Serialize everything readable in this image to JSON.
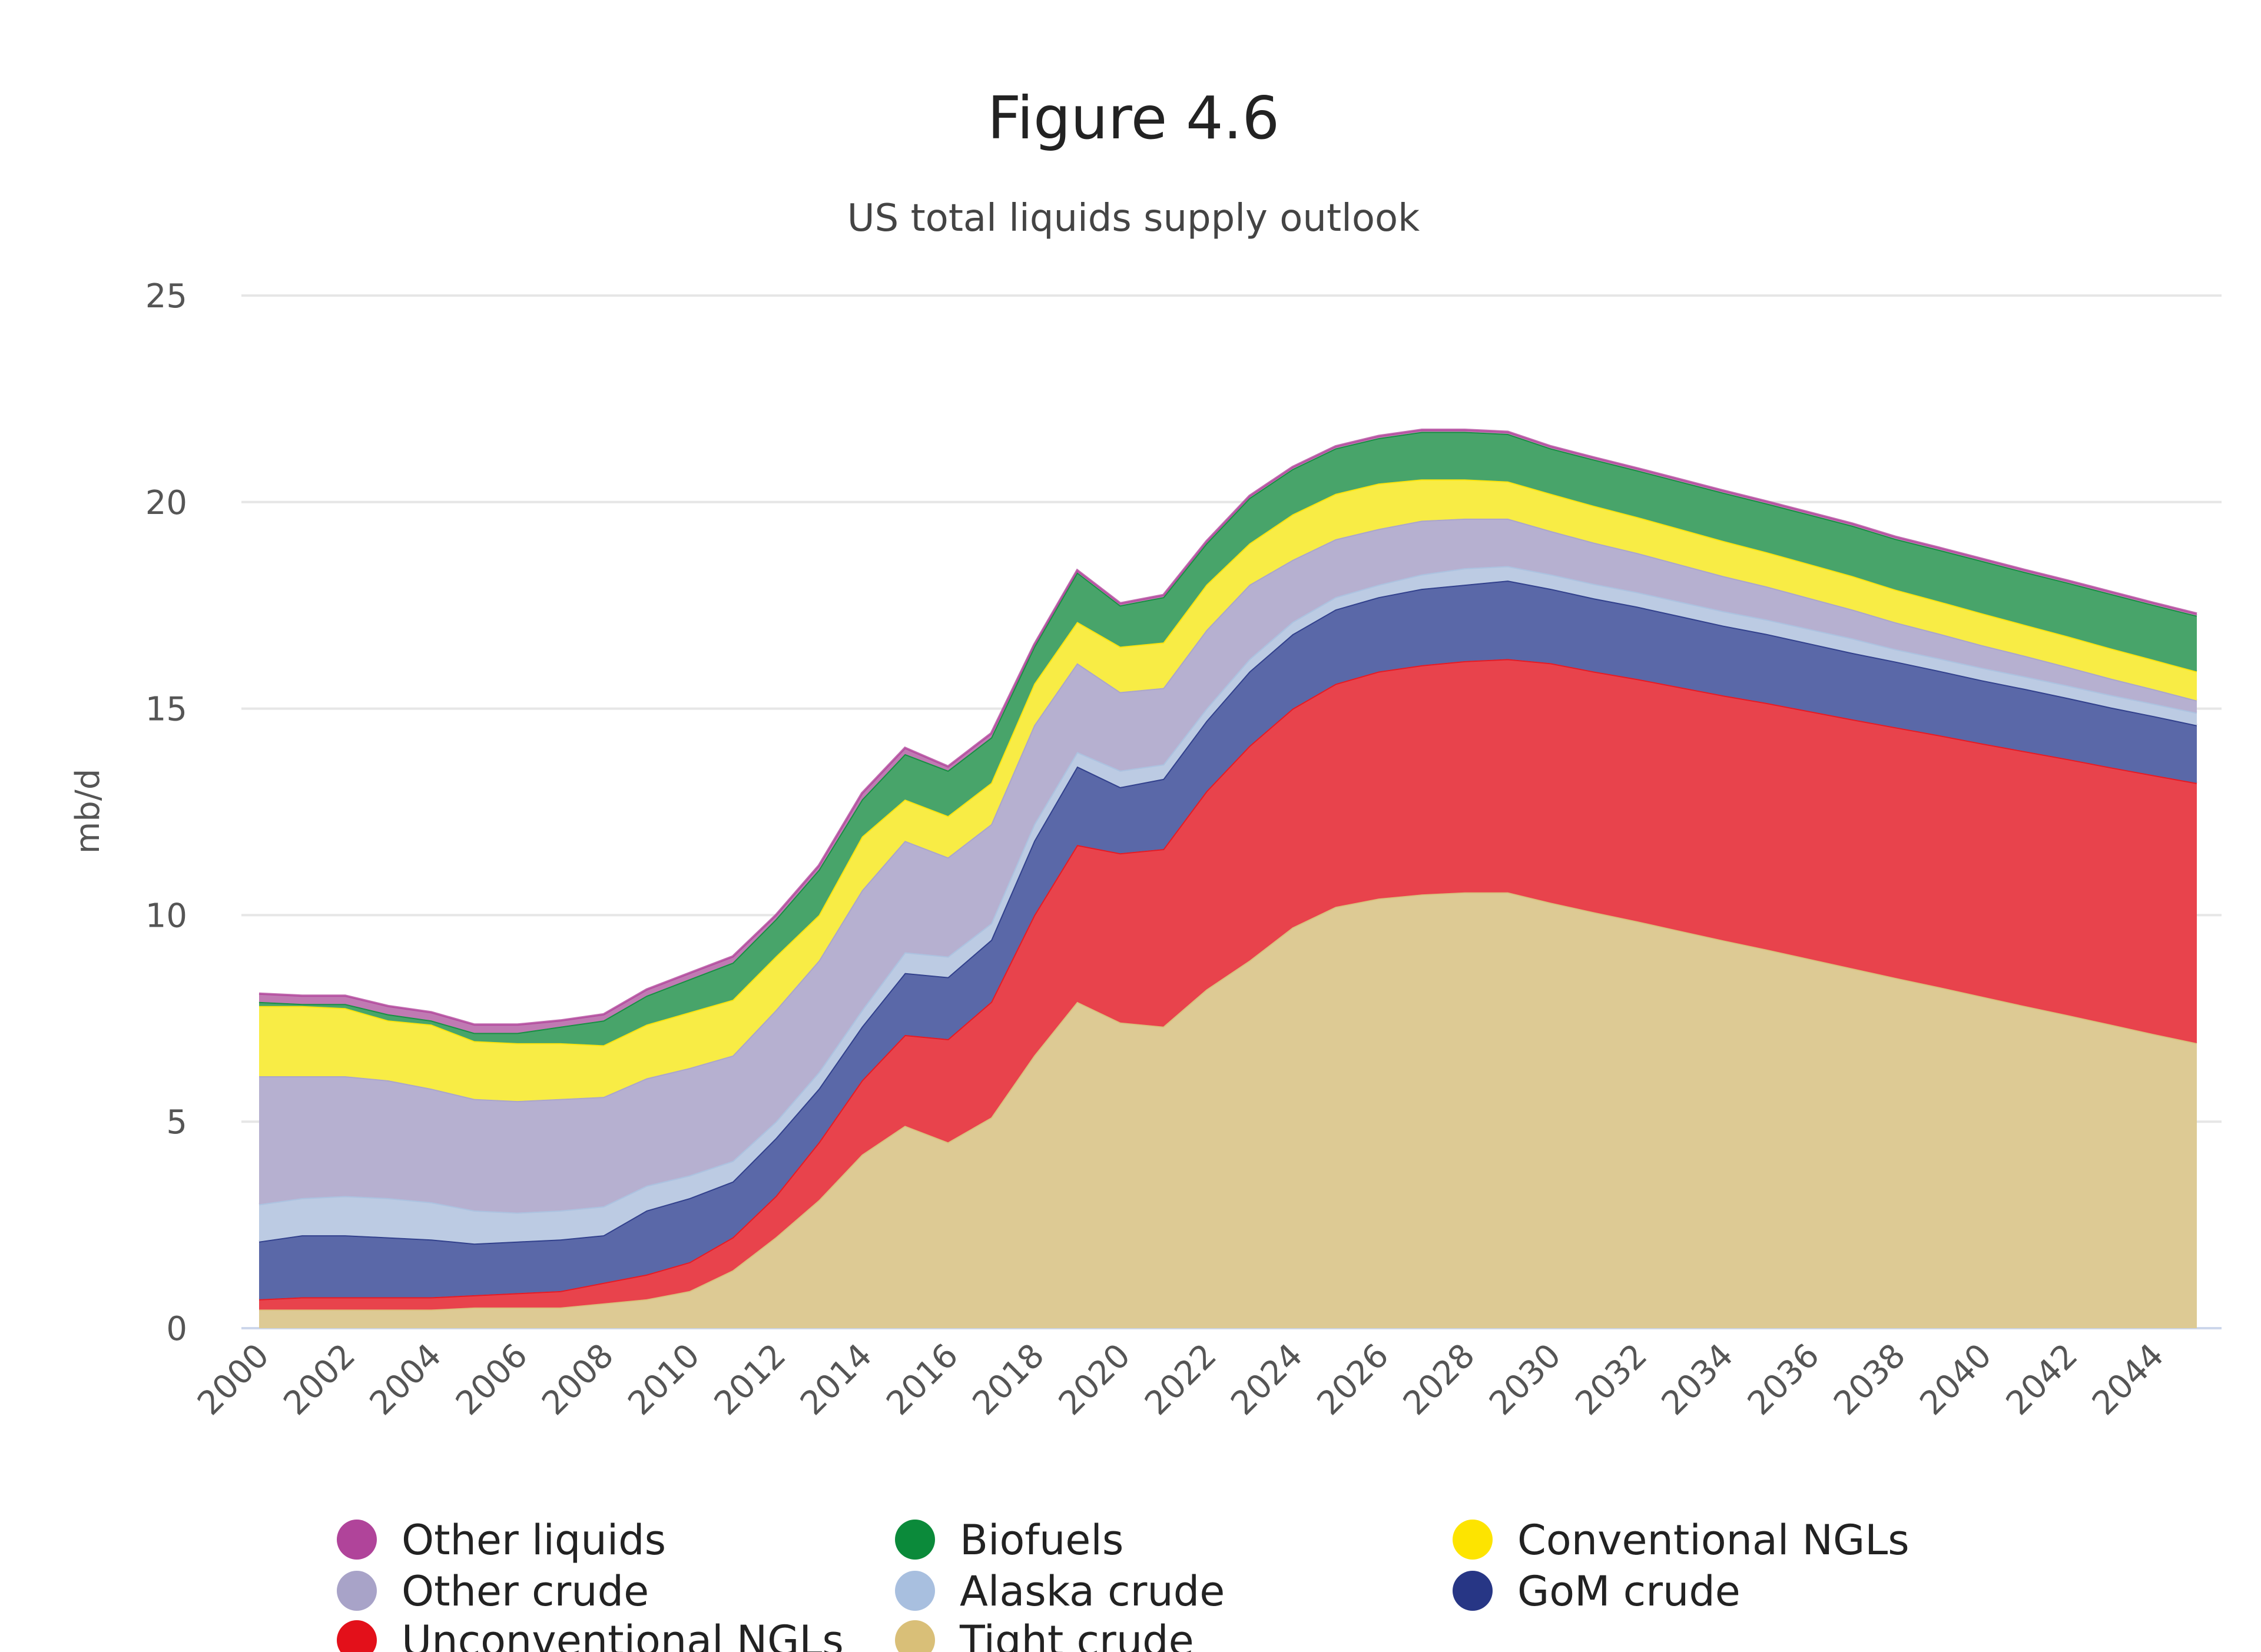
{
  "chart_data": {
    "type": "area",
    "stacked": true,
    "title": "Figure 4.6",
    "subtitle": "US total liquids supply outlook",
    "xlabel": "",
    "ylabel": "mb/d",
    "ylim": [
      0,
      25
    ],
    "yticks": [
      "0",
      "5",
      "10",
      "15",
      "20",
      "25"
    ],
    "xlim": [
      2000,
      2045
    ],
    "xticks": [
      "2000",
      "2002",
      "2004",
      "2006",
      "2008",
      "2010",
      "2012",
      "2014",
      "2016",
      "2018",
      "2020",
      "2022",
      "2024",
      "2026",
      "2028",
      "2030",
      "2032",
      "2034",
      "2036",
      "2038",
      "2040",
      "2042",
      "2044"
    ],
    "grid": true,
    "legend_position": "bottom",
    "x": [
      2000,
      2001,
      2002,
      2003,
      2004,
      2005,
      2006,
      2007,
      2008,
      2009,
      2010,
      2011,
      2012,
      2013,
      2014,
      2015,
      2016,
      2017,
      2018,
      2019,
      2020,
      2021,
      2022,
      2023,
      2024,
      2025,
      2026,
      2027,
      2028,
      2029,
      2030,
      2031,
      2032,
      2033,
      2034,
      2035,
      2036,
      2037,
      2038,
      2039,
      2040,
      2041,
      2042,
      2043,
      2044,
      2045
    ],
    "series": [
      {
        "name": "Tight crude",
        "color": "#d9bf78",
        "fill": "#ddca94",
        "values": [
          0.45,
          0.45,
          0.45,
          0.45,
          0.45,
          0.5,
          0.5,
          0.5,
          0.6,
          0.7,
          0.9,
          1.4,
          2.2,
          3.1,
          4.2,
          4.9,
          4.5,
          5.1,
          6.6,
          7.9,
          7.4,
          7.3,
          8.2,
          8.9,
          9.7,
          10.2,
          10.4,
          10.5,
          10.55,
          10.55,
          10.3,
          10.07,
          9.85,
          9.62,
          9.39,
          9.17,
          8.94,
          8.71,
          8.48,
          8.26,
          8.03,
          7.8,
          7.58,
          7.35,
          7.12,
          6.9
        ]
      },
      {
        "name": "Unconventional NGLs",
        "color": "#e3101a",
        "fill": "#e8434c",
        "values": [
          0.25,
          0.3,
          0.3,
          0.3,
          0.3,
          0.3,
          0.35,
          0.4,
          0.5,
          0.6,
          0.7,
          0.8,
          1.0,
          1.4,
          1.8,
          2.2,
          2.5,
          2.8,
          3.4,
          3.8,
          4.1,
          4.3,
          4.8,
          5.2,
          5.3,
          5.4,
          5.5,
          5.55,
          5.6,
          5.65,
          5.8,
          5.83,
          5.87,
          5.9,
          5.93,
          5.97,
          6.0,
          6.03,
          6.07,
          6.1,
          6.13,
          6.17,
          6.2,
          6.23,
          6.27,
          6.3
        ]
      },
      {
        "name": "GoM crude",
        "color": "#273685",
        "fill": "#5a68a8",
        "values": [
          1.4,
          1.5,
          1.5,
          1.45,
          1.4,
          1.25,
          1.25,
          1.25,
          1.15,
          1.55,
          1.55,
          1.35,
          1.4,
          1.3,
          1.3,
          1.5,
          1.5,
          1.5,
          1.8,
          1.9,
          1.6,
          1.7,
          1.7,
          1.8,
          1.8,
          1.8,
          1.8,
          1.85,
          1.85,
          1.9,
          1.8,
          1.77,
          1.75,
          1.72,
          1.69,
          1.67,
          1.64,
          1.61,
          1.59,
          1.56,
          1.53,
          1.51,
          1.48,
          1.45,
          1.43,
          1.4
        ]
      },
      {
        "name": "Alaska crude",
        "color": "#a8bfdf",
        "fill": "#bccbe3",
        "values": [
          0.9,
          0.9,
          0.95,
          0.95,
          0.9,
          0.8,
          0.7,
          0.7,
          0.7,
          0.6,
          0.55,
          0.5,
          0.4,
          0.4,
          0.4,
          0.5,
          0.5,
          0.4,
          0.4,
          0.35,
          0.4,
          0.35,
          0.3,
          0.3,
          0.3,
          0.3,
          0.3,
          0.35,
          0.4,
          0.35,
          0.35,
          0.35,
          0.35,
          0.35,
          0.35,
          0.35,
          0.35,
          0.35,
          0.3,
          0.3,
          0.3,
          0.3,
          0.3,
          0.3,
          0.3,
          0.3
        ]
      },
      {
        "name": "Other crude",
        "color": "#a8a3c8",
        "fill": "#b6b0d0",
        "values": [
          3.1,
          2.95,
          2.9,
          2.85,
          2.75,
          2.7,
          2.7,
          2.7,
          2.65,
          2.6,
          2.6,
          2.55,
          2.7,
          2.7,
          2.9,
          2.7,
          2.4,
          2.4,
          2.4,
          2.15,
          1.9,
          1.85,
          1.9,
          1.8,
          1.5,
          1.4,
          1.35,
          1.3,
          1.2,
          1.15,
          1.05,
          1.0,
          0.95,
          0.9,
          0.85,
          0.8,
          0.75,
          0.7,
          0.65,
          0.6,
          0.55,
          0.5,
          0.45,
          0.4,
          0.35,
          0.3
        ]
      },
      {
        "name": "Conventional NGLs",
        "color": "#fde400",
        "fill": "#f8ec45",
        "values": [
          1.7,
          1.7,
          1.65,
          1.45,
          1.55,
          1.4,
          1.4,
          1.35,
          1.25,
          1.3,
          1.35,
          1.35,
          1.3,
          1.1,
          1.3,
          1.0,
          1.0,
          1.0,
          1.0,
          1.0,
          1.1,
          1.1,
          1.1,
          1.0,
          1.1,
          1.1,
          1.1,
          1.0,
          0.95,
          0.9,
          0.9,
          0.89,
          0.87,
          0.86,
          0.85,
          0.83,
          0.82,
          0.81,
          0.79,
          0.78,
          0.77,
          0.75,
          0.74,
          0.73,
          0.71,
          0.7
        ]
      },
      {
        "name": "Biofuels",
        "color": "#0b8a3a",
        "fill": "#48a46a",
        "values": [
          0.1,
          0.05,
          0.1,
          0.15,
          0.1,
          0.2,
          0.25,
          0.4,
          0.6,
          0.7,
          0.8,
          0.9,
          0.9,
          1.1,
          0.9,
          1.1,
          1.1,
          1.1,
          0.9,
          1.2,
          1.0,
          1.1,
          1.0,
          1.1,
          1.1,
          1.1,
          1.1,
          1.15,
          1.15,
          1.15,
          1.1,
          1.12,
          1.13,
          1.15,
          1.17,
          1.18,
          1.2,
          1.22,
          1.23,
          1.25,
          1.27,
          1.28,
          1.3,
          1.32,
          1.33,
          1.35
        ]
      },
      {
        "name": "Other liquids",
        "color": "#b0449a",
        "fill": "#c07ab3",
        "values": [
          0.2,
          0.2,
          0.2,
          0.2,
          0.2,
          0.2,
          0.2,
          0.15,
          0.15,
          0.15,
          0.15,
          0.15,
          0.1,
          0.1,
          0.15,
          0.15,
          0.1,
          0.1,
          0.05,
          0.05,
          0.05,
          0.05,
          0.05,
          0.05,
          0.05,
          0.05,
          0.05,
          0.05,
          0.05,
          0.05,
          0.05,
          0.05,
          0.05,
          0.05,
          0.05,
          0.05,
          0.05,
          0.05,
          0.05,
          0.05,
          0.05,
          0.05,
          0.05,
          0.05,
          0.05,
          0.05
        ]
      }
    ],
    "legend_order": [
      "Other liquids",
      "Biofuels",
      "Conventional NGLs",
      "Other crude",
      "Alaska crude",
      "GoM crude",
      "Unconventional NGLs",
      "Tight crude"
    ]
  }
}
